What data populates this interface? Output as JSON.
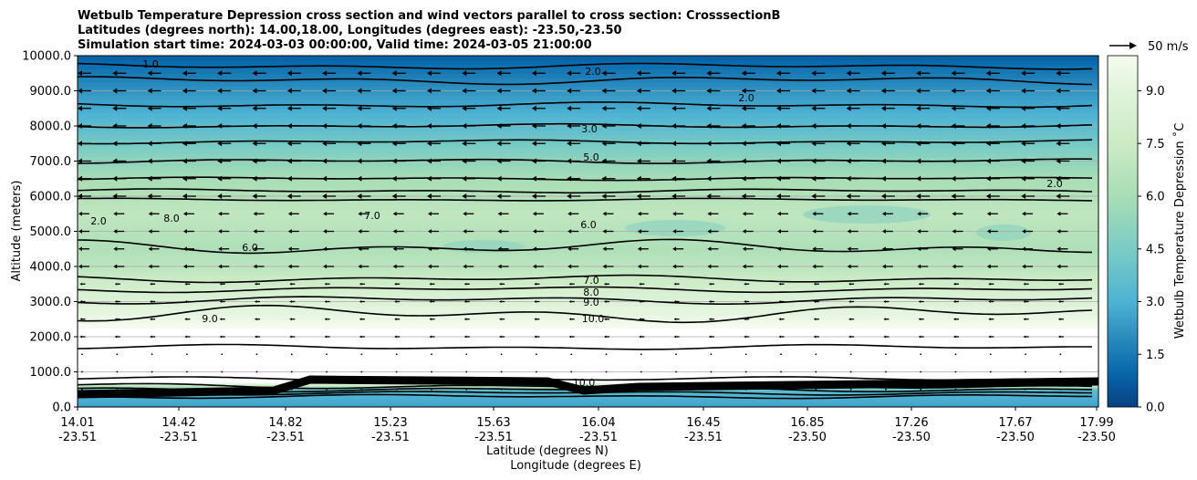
{
  "chart_data": {
    "type": "heatmap",
    "title_lines": [
      "Wetbulb Temperature Depression cross section and wind vectors parallel to cross section: CrosssectionB",
      "Latitudes (degrees north): 14.00,18.00, Longitudes (degrees east): -23.50,-23.50",
      "Simulation start time: 2024-03-03 00:00:00, Valid time: 2024-03-05 21:00:00"
    ],
    "ylabel": "Altitude (meters)",
    "xlabel": "Latitude (degrees N)",
    "xlabel2": "Longitude (degrees E)",
    "ylim": [
      0,
      10000
    ],
    "y_ticks": [
      "0.0",
      "1000.0",
      "2000.0",
      "3000.0",
      "4000.0",
      "5000.0",
      "6000.0",
      "7000.0",
      "8000.0",
      "9000.0",
      "10000.0"
    ],
    "x_ticks": [
      {
        "lat": "14.01",
        "lon": "-23.51"
      },
      {
        "lat": "14.42",
        "lon": "-23.51"
      },
      {
        "lat": "14.82",
        "lon": "-23.51"
      },
      {
        "lat": "15.23",
        "lon": "-23.51"
      },
      {
        "lat": "15.63",
        "lon": "-23.51"
      },
      {
        "lat": "16.04",
        "lon": "-23.51"
      },
      {
        "lat": "16.45",
        "lon": "-23.51"
      },
      {
        "lat": "16.85",
        "lon": "-23.50"
      },
      {
        "lat": "17.26",
        "lon": "-23.50"
      },
      {
        "lat": "17.67",
        "lon": "-23.50"
      },
      {
        "lat": "17.99",
        "lon": "-23.50"
      }
    ],
    "grid": "horizontal lines at y ticks",
    "colorbar": {
      "label": "Wetbulb Temperature Depression ˚C",
      "min": 0,
      "max": 10,
      "ticks": [
        "0.0",
        "1.5",
        "3.0",
        "4.5",
        "6.0",
        "7.5",
        "9.0"
      ],
      "colormap": "GnBu_r"
    },
    "quiver_key": "50 m/s",
    "field_profile": {
      "altitude_m": [
        0,
        300,
        500,
        700,
        1000,
        1500,
        2000,
        2500,
        3000,
        3500,
        4000,
        4500,
        5000,
        5500,
        6000,
        6500,
        7000,
        7500,
        8000,
        8500,
        9000,
        9500,
        10000
      ],
      "depression_C": [
        2.5,
        3.0,
        3.5,
        10.0,
        10.5,
        10.8,
        10.6,
        9.5,
        8.8,
        7.8,
        6.8,
        6.3,
        6.6,
        7.0,
        6.5,
        6.0,
        5.2,
        4.3,
        3.5,
        2.8,
        2.2,
        1.5,
        0.8
      ]
    },
    "contour_labels": [
      "1.0",
      "2.0",
      "3.0",
      "5.0",
      "6.0",
      "7.0",
      "8.0",
      "9.0",
      "10.0",
      "6.0",
      "7.0",
      "8.0",
      "9.0",
      "10.0",
      "2.0",
      "2.0",
      "2.0"
    ]
  }
}
